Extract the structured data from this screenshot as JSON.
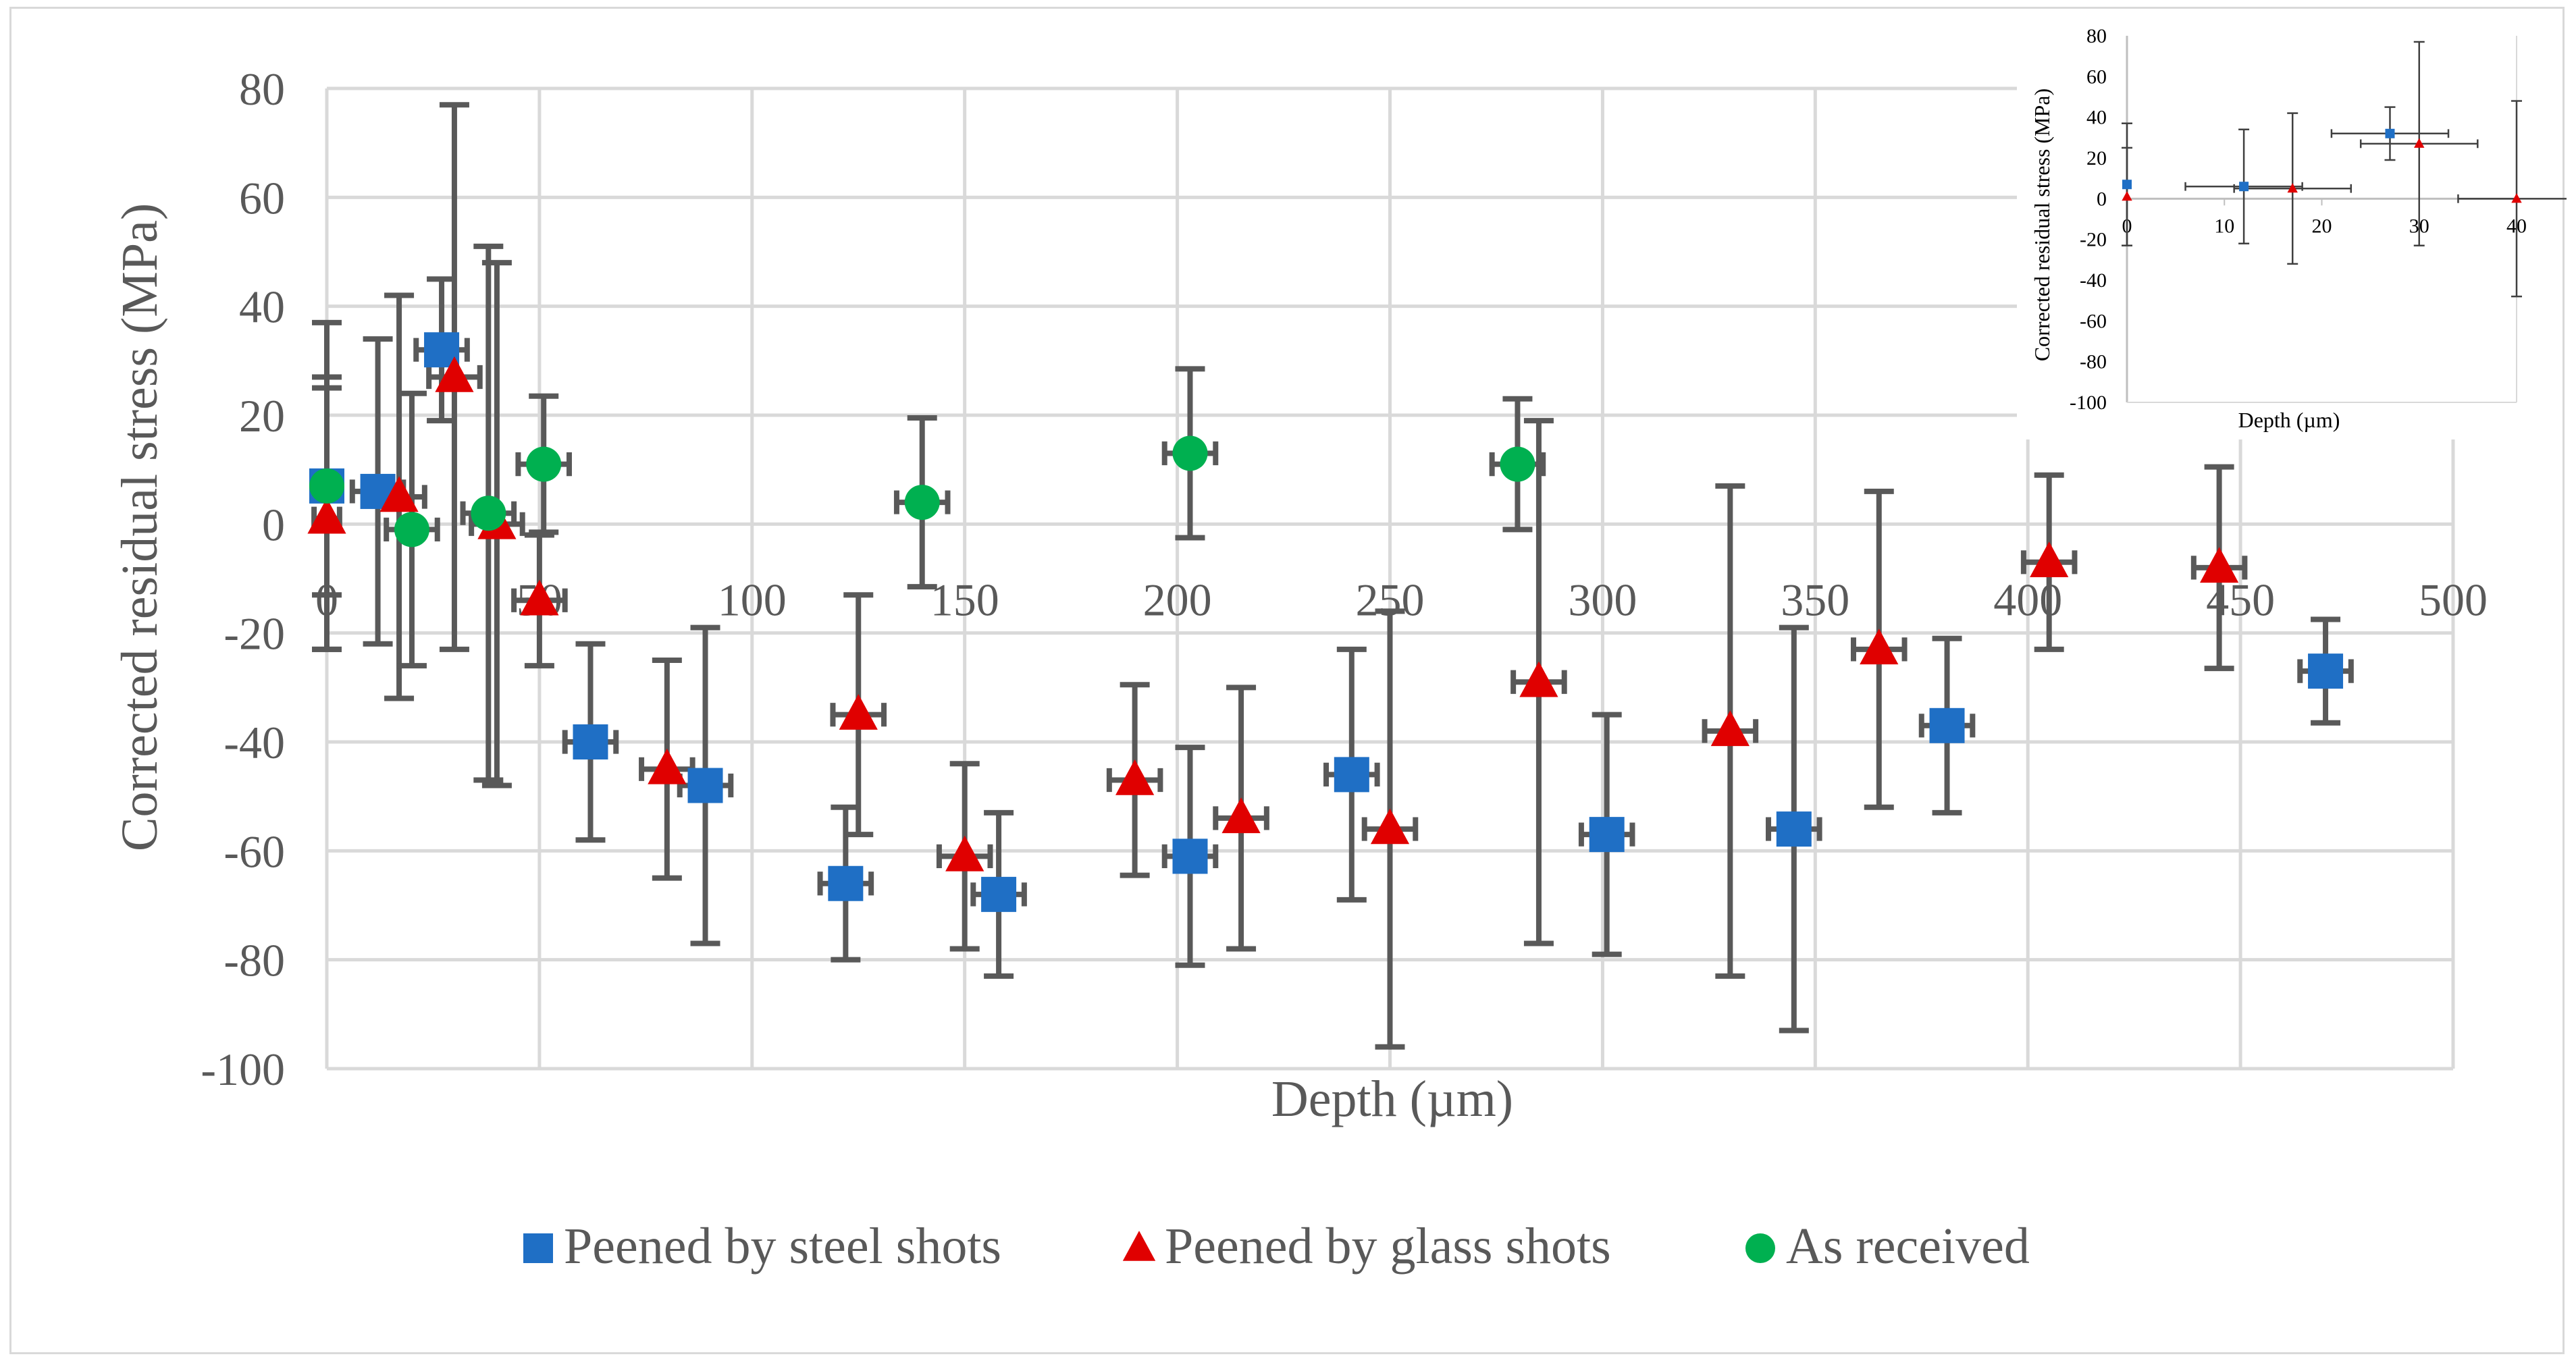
{
  "chart_data": [
    {
      "type": "scatter",
      "title": "",
      "xlabel": "Depth (µm)",
      "ylabel": "Corrected residual stress (MPa)",
      "xlim": [
        0,
        500
      ],
      "ylim": [
        -100,
        80
      ],
      "xticks": [
        "0",
        "50",
        "100",
        "150",
        "200",
        "250",
        "300",
        "350",
        "400",
        "450",
        "500"
      ],
      "yticks": [
        "-100",
        "-80",
        "-60",
        "-40",
        "-20",
        "0",
        "20",
        "40",
        "60",
        "80"
      ],
      "grid": true,
      "legend_position": "bottom",
      "series": [
        {
          "name": "Peened by steel shots",
          "marker": "square",
          "color": "#1f6fc5",
          "points": [
            {
              "x": 0,
              "y": 7,
              "yerr": 30,
              "xerr": 3
            },
            {
              "x": 12,
              "y": 6,
              "yerr": 28,
              "xerr": 6
            },
            {
              "x": 27,
              "y": 32,
              "yerr": 13,
              "xerr": 6
            },
            {
              "x": 62,
              "y": -40,
              "yerr": 18,
              "xerr": 6
            },
            {
              "x": 89,
              "y": -48,
              "yerr": 29,
              "xerr": 6
            },
            {
              "x": 122,
              "y": -66,
              "yerr": 14,
              "xerr": 6
            },
            {
              "x": 158,
              "y": -68,
              "yerr": 15,
              "xerr": 6
            },
            {
              "x": 203,
              "y": -61,
              "yerr": 20,
              "xerr": 6
            },
            {
              "x": 241,
              "y": -46,
              "yerr": 23,
              "xerr": 6
            },
            {
              "x": 301,
              "y": -57,
              "yerr": 22,
              "xerr": 6
            },
            {
              "x": 345,
              "y": -56,
              "yerr": 37,
              "xerr": 6
            },
            {
              "x": 381,
              "y": -37,
              "yerr": 16,
              "xerr": 6
            },
            {
              "x": 470,
              "y": -27,
              "yerr": 9.5,
              "xerr": 6
            }
          ]
        },
        {
          "name": "Peened by glass shots",
          "marker": "triangle",
          "color": "#e00000",
          "points": [
            {
              "x": 0,
              "y": 1,
              "yerr": 24,
              "xerr": 3
            },
            {
              "x": 17,
              "y": 5,
              "yerr": 37,
              "xerr": 6
            },
            {
              "x": 30,
              "y": 27,
              "yerr": 50,
              "xerr": 6
            },
            {
              "x": 40,
              "y": 0,
              "yerr": 48,
              "xerr": 6
            },
            {
              "x": 50,
              "y": -14,
              "yerr": 12,
              "xerr": 6
            },
            {
              "x": 80,
              "y": -45,
              "yerr": 20,
              "xerr": 6
            },
            {
              "x": 125,
              "y": -35,
              "yerr": 22,
              "xerr": 6
            },
            {
              "x": 150,
              "y": -61,
              "yerr": 17,
              "xerr": 6
            },
            {
              "x": 190,
              "y": -47,
              "yerr": 17.5,
              "xerr": 6
            },
            {
              "x": 215,
              "y": -54,
              "yerr": 24,
              "xerr": 6
            },
            {
              "x": 250,
              "y": -56,
              "yerr": 40,
              "xerr": 6
            },
            {
              "x": 285,
              "y": -29,
              "yerr": 48,
              "xerr": 6
            },
            {
              "x": 330,
              "y": -38,
              "yerr": 45,
              "xerr": 6
            },
            {
              "x": 365,
              "y": -23,
              "yerr": 29,
              "xerr": 6
            },
            {
              "x": 405,
              "y": -7,
              "yerr": 16,
              "xerr": 6
            },
            {
              "x": 445,
              "y": -8,
              "yerr": 18.5,
              "xerr": 6
            }
          ]
        },
        {
          "name": "As received",
          "marker": "circle",
          "color": "#00b050",
          "points": [
            {
              "x": 0,
              "y": 7,
              "yerr": 20,
              "xerr": 3
            },
            {
              "x": 20,
              "y": -1,
              "yerr": 25,
              "xerr": 6
            },
            {
              "x": 38,
              "y": 2,
              "yerr": 49,
              "xerr": 6
            },
            {
              "x": 51,
              "y": 11,
              "yerr": 12.5,
              "xerr": 6
            },
            {
              "x": 140,
              "y": 4,
              "yerr": 15.5,
              "xerr": 6
            },
            {
              "x": 203,
              "y": 13,
              "yerr": 15.5,
              "xerr": 6
            },
            {
              "x": 280,
              "y": 11,
              "yerr": 12,
              "xerr": 6
            }
          ]
        }
      ]
    },
    {
      "type": "scatter",
      "title": "",
      "xlabel": "Depth (µm)",
      "ylabel": "Corrected residual stress (MPa)",
      "xlim": [
        0,
        40
      ],
      "ylim": [
        -100,
        80
      ],
      "xticks": [
        "0",
        "10",
        "20",
        "30",
        "40"
      ],
      "yticks": [
        "-100",
        "-80",
        "-60",
        "-40",
        "-20",
        "0",
        "20",
        "40",
        "60",
        "80"
      ],
      "grid": false,
      "legend_position": "none",
      "series": [
        {
          "name": "Peened by steel shots",
          "marker": "square",
          "color": "#1f6fc5",
          "points": [
            {
              "x": 0,
              "y": 7,
              "yerr": 30,
              "xerr": 0
            },
            {
              "x": 12,
              "y": 6,
              "yerr": 28,
              "xerr": 6
            },
            {
              "x": 27,
              "y": 32,
              "yerr": 13,
              "xerr": 6
            }
          ]
        },
        {
          "name": "Peened by glass shots",
          "marker": "triangle",
          "color": "#e00000",
          "points": [
            {
              "x": 0,
              "y": 1,
              "yerr": 24,
              "xerr": 0
            },
            {
              "x": 17,
              "y": 5,
              "yerr": 37,
              "xerr": 6
            },
            {
              "x": 30,
              "y": 27,
              "yerr": 50,
              "xerr": 6
            },
            {
              "x": 40,
              "y": 0,
              "yerr": 48,
              "xerr": 6
            }
          ]
        }
      ]
    }
  ]
}
